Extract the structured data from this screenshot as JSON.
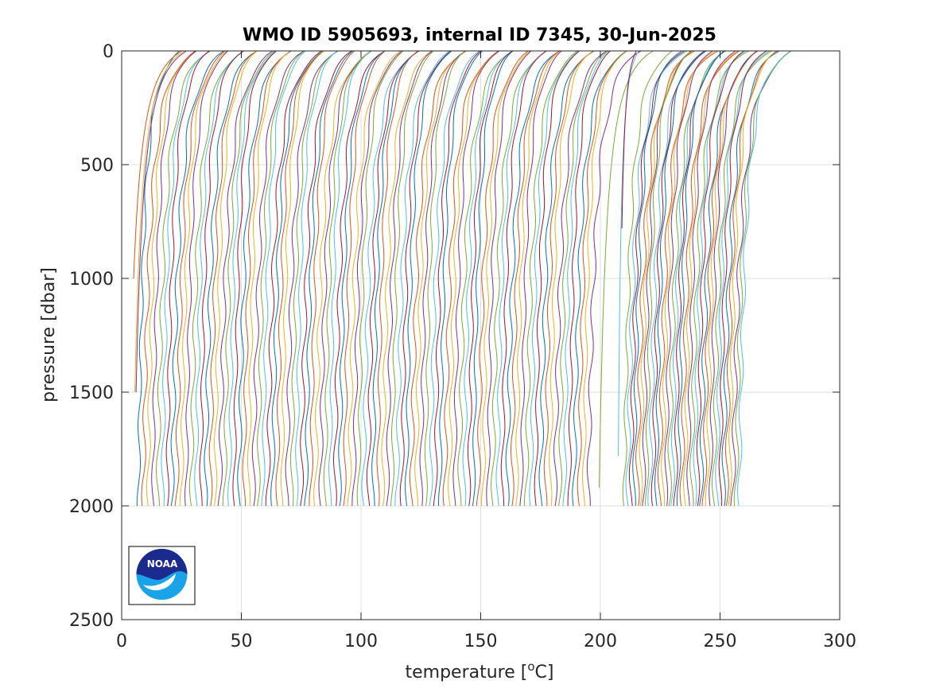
{
  "chart_data": {
    "type": "line",
    "title": "WMO ID 5905693, internal ID 7345, 30-Jun-2025",
    "xlabel": "temperature [",
    "xlabel_superscript": "o",
    "xlabel_suffix": "C]",
    "ylabel": "pressure [dbar]",
    "xlim": [
      0,
      300
    ],
    "ylim": [
      0,
      2500
    ],
    "y_reversed": true,
    "grid": true,
    "x_ticks": [
      0,
      50,
      100,
      150,
      200,
      250,
      300
    ],
    "x_tick_labels": [
      "0",
      "50",
      "100",
      "150",
      "200",
      "250",
      "300"
    ],
    "y_ticks": [
      0,
      500,
      1000,
      1500,
      2000,
      2500
    ],
    "y_tick_labels": [
      "0",
      "500",
      "1000",
      "1500",
      "2000",
      "2500"
    ],
    "profile_group_1": {
      "count": 95,
      "first_deep_x": 7,
      "last_deep_x": 195,
      "surface_offset": 20,
      "max_pressure": 2000
    },
    "profile_group_2": {
      "count": 37,
      "first_deep_x": 210,
      "last_deep_x": 258,
      "surface_offset": 22,
      "max_pressure": 2000
    },
    "partial_profiles": [
      {
        "x_start": 5,
        "x_end": 25,
        "p_end": 1000
      },
      {
        "x_start": 5.5,
        "x_end": 26,
        "p_end": 1500
      },
      {
        "x_start": 6,
        "x_end": 27,
        "p_end": 1510
      },
      {
        "x_start": 199.5,
        "x_end": 222,
        "p_end": 1930
      },
      {
        "x_start": 207.5,
        "x_end": 216,
        "p_end": 1790
      },
      {
        "x_start": 209,
        "x_end": 215,
        "p_end": 780
      }
    ],
    "series_colors": [
      "#0072bd",
      "#d95319",
      "#edb120",
      "#7e2f8e",
      "#77ac30",
      "#4dbeee",
      "#a2142f"
    ],
    "logo": "noaa-logo",
    "logo_text": "NOAA",
    "logo_placement": "bottom-left"
  }
}
